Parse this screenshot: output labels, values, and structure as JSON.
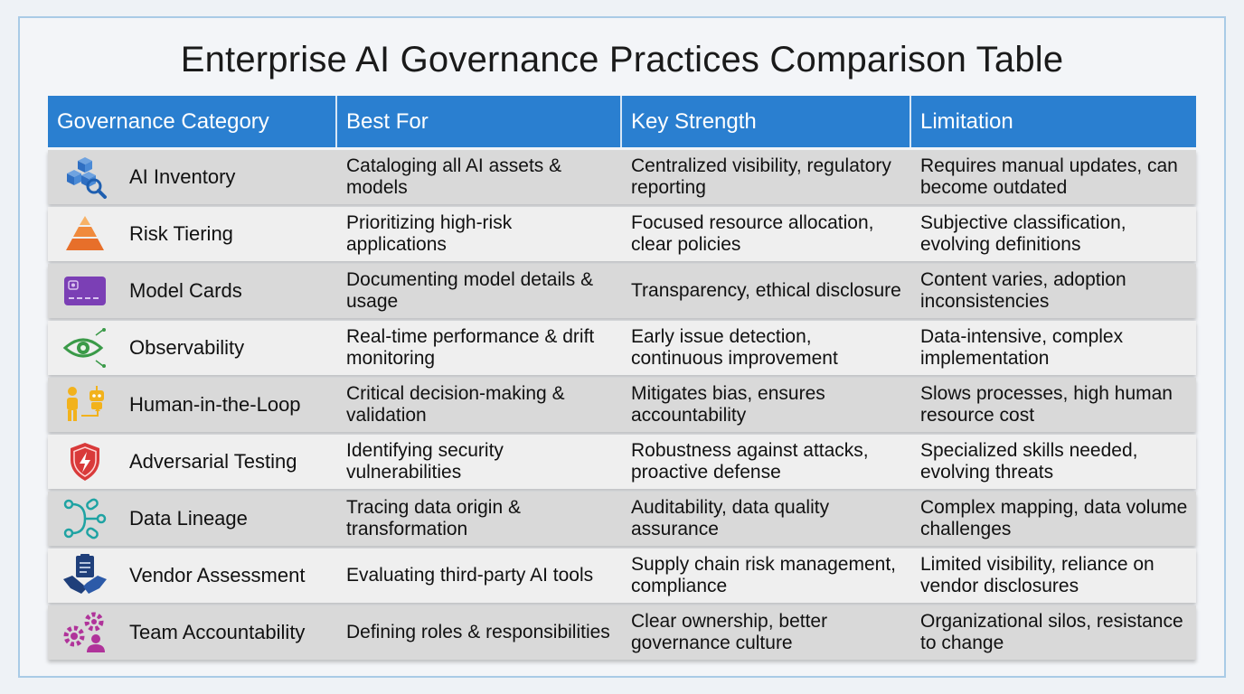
{
  "title": "Enterprise AI Governance Practices Comparison Table",
  "headers": [
    "Governance Category",
    "Best For",
    "Key Strength",
    "Limitation"
  ],
  "rows": [
    {
      "icon": "ai-inventory-cubes-icon",
      "category": "AI Inventory",
      "best_for": "Cataloging all AI assets & models",
      "strength": "Centralized visibility, regulatory reporting",
      "limitation": "Requires manual updates, can become outdated"
    },
    {
      "icon": "pyramid-icon",
      "category": "Risk Tiering",
      "best_for": "Prioritizing high-risk applications",
      "strength": "Focused resource allocation, clear policies",
      "limitation": "Subjective classification, evolving definitions"
    },
    {
      "icon": "model-card-icon",
      "category": "Model Cards",
      "best_for": "Documenting model details & usage",
      "strength": "Transparency, ethical disclosure",
      "limitation": "Content varies, adoption inconsistencies"
    },
    {
      "icon": "eye-icon",
      "category": "Observability",
      "best_for": "Real-time performance & drift monitoring",
      "strength": "Early issue detection, continuous improvement",
      "limitation": "Data-intensive, complex implementation"
    },
    {
      "icon": "human-robot-icon",
      "category": "Human-in-the-Loop",
      "best_for": "Critical decision-making & validation",
      "strength": "Mitigates bias, ensures accountability",
      "limitation": "Slows processes, high human resource cost"
    },
    {
      "icon": "shield-icon",
      "category": "Adversarial Testing",
      "best_for": "Identifying security vulnerabilities",
      "strength": "Robustness against attacks, proactive defense",
      "limitation": "Specialized skills needed, evolving threats"
    },
    {
      "icon": "data-lineage-icon",
      "category": "Data Lineage",
      "best_for": "Tracing data origin & transformation",
      "strength": "Auditability, data quality assurance",
      "limitation": "Complex mapping, data volume challenges"
    },
    {
      "icon": "handshake-clipboard-icon",
      "category": "Vendor Assessment",
      "best_for": "Evaluating third-party AI tools",
      "strength": "Supply chain risk management, compliance",
      "limitation": "Limited visibility, reliance on vendor disclosures"
    },
    {
      "icon": "gears-person-icon",
      "category": "Team Accountability",
      "best_for": "Defining roles & responsibilities",
      "strength": "Clear ownership, better governance culture",
      "limitation": "Organizational silos, resistance to change"
    }
  ]
}
